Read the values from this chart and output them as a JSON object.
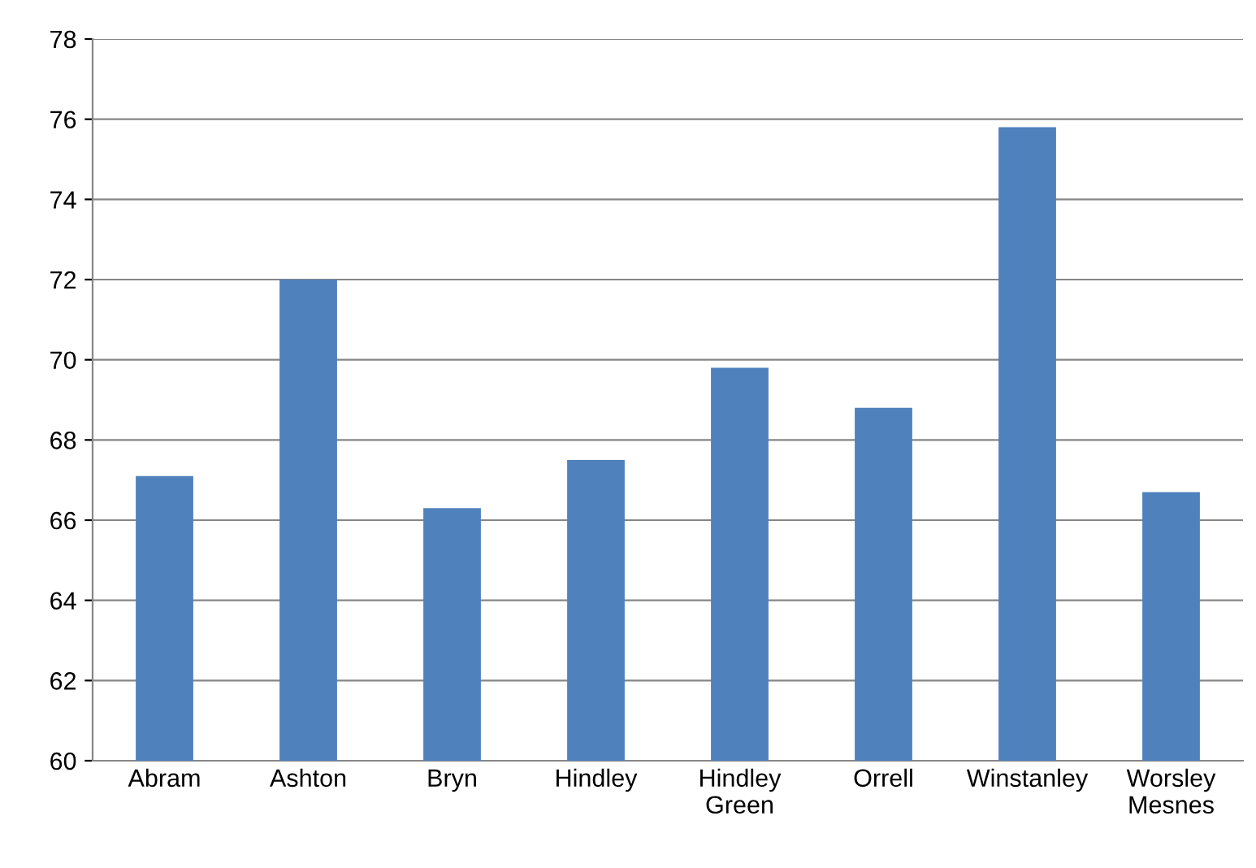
{
  "chart_data": {
    "type": "bar",
    "categories": [
      "Abram",
      "Ashton",
      "Bryn",
      "Hindley",
      "Hindley\nGreen",
      "Orrell",
      "Winstanley",
      "Worsley\nMesnes"
    ],
    "values": [
      67.1,
      72.0,
      66.3,
      67.5,
      69.8,
      68.8,
      75.8,
      66.7
    ],
    "color": "#4f81bd",
    "ylim": [
      60,
      78
    ],
    "yticks": [
      60,
      62,
      64,
      66,
      68,
      70,
      72,
      74,
      76,
      78
    ],
    "grid": "y",
    "legend": false
  }
}
